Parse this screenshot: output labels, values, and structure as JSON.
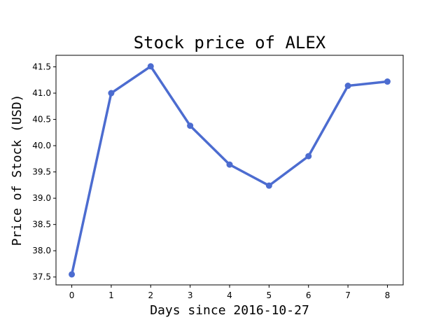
{
  "chart_data": {
    "type": "line",
    "title": "Stock price of ALEX",
    "xlabel": "Days since 2016-10-27",
    "ylabel": "Price of Stock (USD)",
    "x": [
      0,
      1,
      2,
      3,
      4,
      5,
      6,
      7,
      8
    ],
    "series": [
      {
        "values": [
          37.55,
          41.0,
          41.51,
          40.38,
          39.64,
          39.24,
          39.8,
          41.14,
          41.22
        ],
        "color": "#4c6cd0"
      }
    ],
    "xlim": [
      -0.4,
      8.4
    ],
    "ylim": [
      37.35,
      41.72
    ],
    "xticks": [
      "0",
      "1",
      "2",
      "3",
      "4",
      "5",
      "6",
      "7",
      "8"
    ],
    "yticks": [
      "37.5",
      "38.0",
      "38.5",
      "39.0",
      "39.5",
      "40.0",
      "40.5",
      "41.0",
      "41.5"
    ],
    "grid": false,
    "legend": "none"
  }
}
